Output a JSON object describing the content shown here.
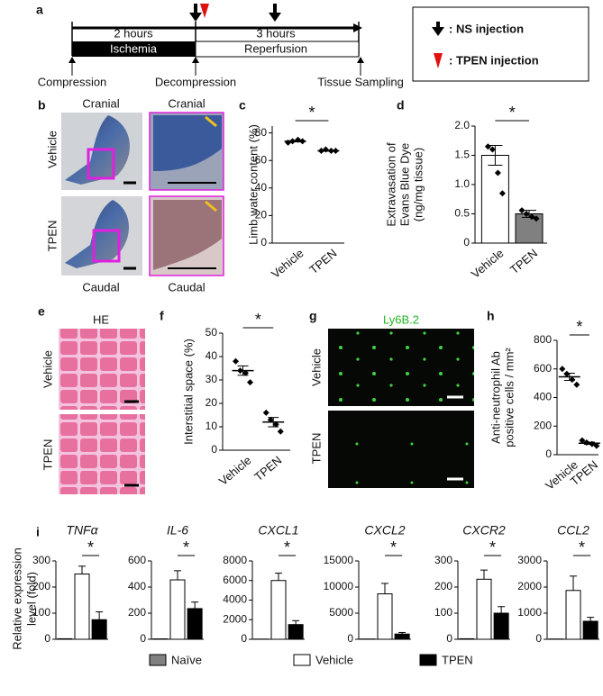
{
  "timeline": {
    "letter": "a",
    "durations": [
      "2 hours",
      "3 hours"
    ],
    "phases": [
      "Ischemia",
      "Reperfusion"
    ],
    "events": [
      "Compression",
      "Decompression",
      "Tissue Sampling"
    ],
    "legend": [
      ": NS injection",
      ": TPEN injection"
    ]
  },
  "photos_b": {
    "letter": "b",
    "top": [
      "Cranial",
      "Cranial"
    ],
    "rows": [
      "Vehicle",
      "TPEN"
    ],
    "bottom": [
      "Caudal",
      "Caudal"
    ]
  },
  "histology_e": {
    "letter": "e",
    "title": "HE",
    "rows": [
      "Vehicle",
      "TPEN"
    ]
  },
  "fluorescence_g": {
    "letter": "g",
    "title": "Ly6B.2",
    "rows": [
      "Vehicle",
      "TPEN"
    ]
  },
  "panel_i": {
    "letter": "i",
    "ylabel": [
      "Relative expression",
      "level (fold)"
    ],
    "legend": [
      {
        "name": "Naïve",
        "color": "#808080"
      },
      {
        "name": "Vehicle",
        "color": "#ffffff"
      },
      {
        "name": "TPEN",
        "color": "#000000"
      }
    ]
  },
  "chart_data": [
    {
      "type": "dot",
      "letter": "c",
      "ylabel": [
        "Limb water content (%)"
      ],
      "categories": [
        "Vehicle",
        "TPEN"
      ],
      "points": [
        [
          73,
          74,
          75,
          74
        ],
        [
          67,
          68,
          67,
          67
        ]
      ],
      "means": [
        74,
        67
      ],
      "errors": [
        0.5,
        0.3
      ],
      "ylim": [
        0,
        85
      ],
      "yticks": [
        0,
        20,
        40,
        60,
        80
      ],
      "annotation": "*"
    },
    {
      "type": "bar",
      "letter": "d",
      "ylabel": [
        "Extravasation of",
        "Evans Blue Dye",
        "(ng/mg tissue)"
      ],
      "categories": [
        "Vehicle",
        "TPEN"
      ],
      "values": [
        1.5,
        0.5
      ],
      "errors": [
        0.17,
        0.06
      ],
      "colors": [
        "#ffffff",
        "#808080"
      ],
      "points": [
        [
          1.65,
          1.6,
          1.2,
          0.85
        ],
        [
          0.56,
          0.5,
          0.45,
          0.42
        ]
      ],
      "ylim": [
        0,
        2
      ],
      "yticks": [
        0,
        0.5,
        {
          "value": 1,
          "label": "1.0"
        },
        1.5,
        {
          "value": 2,
          "label": "2.0"
        }
      ],
      "annotation": "*"
    },
    {
      "type": "dot",
      "letter": "f",
      "ylabel": [
        "Interstitial space (%)"
      ],
      "categories": [
        "Vehicle",
        "TPEN"
      ],
      "points": [
        [
          38,
          34,
          33,
          29
        ],
        [
          16,
          13,
          11,
          8
        ]
      ],
      "means": [
        34,
        12
      ],
      "errors": [
        2,
        2
      ],
      "ylim": [
        0,
        50
      ],
      "yticks": [
        0,
        10,
        20,
        30,
        40,
        50
      ],
      "annotation": "*"
    },
    {
      "type": "dot",
      "letter": "h",
      "ylabel": [
        "Anti-neutrophil Ab",
        "positive cells / mm²"
      ],
      "categories": [
        "Vehicle",
        "TPEN"
      ],
      "points": [
        [
          600,
          565,
          525,
          490
        ],
        [
          100,
          85,
          75,
          62
        ]
      ],
      "means": [
        545,
        80
      ],
      "errors": [
        25,
        8
      ],
      "ylim": [
        0,
        800
      ],
      "yticks": [
        0,
        200,
        400,
        600,
        800
      ],
      "annotation": "*"
    },
    {
      "type": "bar",
      "title": "TNFα",
      "values": [
        2,
        250,
        75
      ],
      "errors": [
        null,
        30,
        30
      ],
      "ylim": [
        0,
        300
      ],
      "yticks": [
        0,
        100,
        200,
        300
      ],
      "annotation": "*"
    },
    {
      "type": "bar",
      "title": "IL-6",
      "values": [
        3,
        455,
        235
      ],
      "errors": [
        null,
        70,
        50
      ],
      "ylim": [
        0,
        600
      ],
      "yticks": [
        0,
        200,
        400,
        600
      ],
      "annotation": "*"
    },
    {
      "type": "bar",
      "title": "CXCL1",
      "values": [
        20,
        6000,
        1500
      ],
      "errors": [
        null,
        750,
        400
      ],
      "ylim": [
        0,
        8000
      ],
      "yticks": [
        0,
        2000,
        4000,
        6000,
        8000
      ],
      "annotation": "*"
    },
    {
      "type": "bar",
      "title": "CXCL2",
      "values": [
        50,
        8700,
        1000
      ],
      "errors": [
        null,
        2000,
        300
      ],
      "ylim": [
        0,
        15000
      ],
      "yticks": [
        0,
        5000,
        10000,
        15000
      ],
      "annotation": "*"
    },
    {
      "type": "bar",
      "title": "CXCR2",
      "values": [
        2,
        230,
        100
      ],
      "errors": [
        null,
        35,
        25
      ],
      "ylim": [
        0,
        300
      ],
      "yticks": [
        0,
        100,
        200,
        300
      ],
      "annotation": "*"
    },
    {
      "type": "bar",
      "title": "CCL2",
      "values": [
        10,
        1870,
        690
      ],
      "errors": [
        null,
        550,
        150
      ],
      "ylim": [
        0,
        3000
      ],
      "yticks": [
        0,
        1000,
        2000,
        3000
      ],
      "annotation": "*"
    }
  ]
}
